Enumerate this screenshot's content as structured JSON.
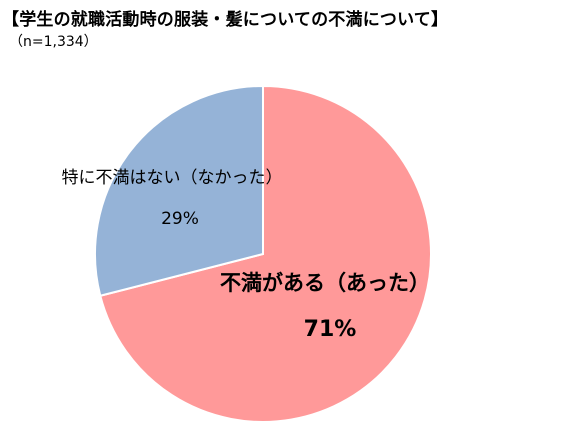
{
  "chart_data": {
    "type": "pie",
    "title": "【学生の就職活動時の服装・髪についての不満について】",
    "subtitle": "（n=1,334）",
    "start_angle_deg": 0,
    "direction": "clockwise",
    "slices": [
      {
        "label": "不満がある（あった）",
        "value": 71,
        "value_label": "71%",
        "color": "#ff9999",
        "label_style": "bold"
      },
      {
        "label": "特に不満はない（なかった）",
        "value": 29,
        "value_label": "29%",
        "color": "#95b3d7",
        "label_style": "normal"
      }
    ]
  }
}
